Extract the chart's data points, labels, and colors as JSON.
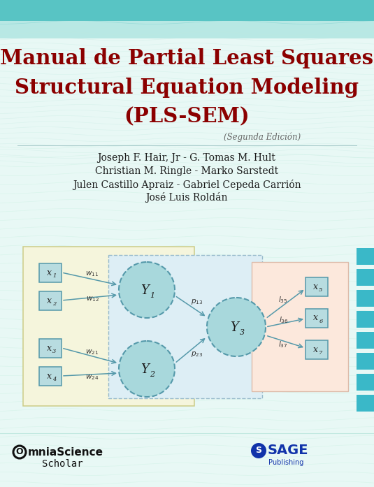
{
  "title_line1": "Manual de Partial Least Squares",
  "title_line2": "Structural Equation Modeling",
  "title_line3": "(PLS-SEM)",
  "subtitle": "(Segunda Edición)",
  "authors": [
    "Joseph F. Hair, Jr - G. Tomas M. Hult",
    "Christian M. Ringle - Marko Sarstedt",
    "Julen Castillo Apraiz - Gabriel Cepeda Carrión",
    "José Luis Roldán"
  ],
  "bg_top": "#58c4c4",
  "bg_mid": "#b8e8e4",
  "bg_body": "#e8f8f5",
  "title_color": "#8b0000",
  "author_color": "#1a1a1a",
  "subtitle_color": "#666666",
  "diagram_yellow": "#f5f5dc",
  "diagram_yellow_border": "#cccc88",
  "diagram_blue_dashed": "#ddeef5",
  "diagram_blue_border": "#99bbcc",
  "diagram_salmon": "#fce8dc",
  "diagram_salmon_border": "#ddbbaa",
  "node_fill": "#a8d8dc",
  "node_border": "#5599aa",
  "box_fill": "#b8dce0",
  "box_border": "#5599aa",
  "arrow_color": "#5599aa",
  "side_rect_color": "#3ab8c8",
  "wave_color": "#c0e8e0",
  "wave_color2": "#c8f0e0",
  "bottom_line_color": "#c0e8e0",
  "omnia_color": "#111111",
  "sage_color": "#1133aa"
}
